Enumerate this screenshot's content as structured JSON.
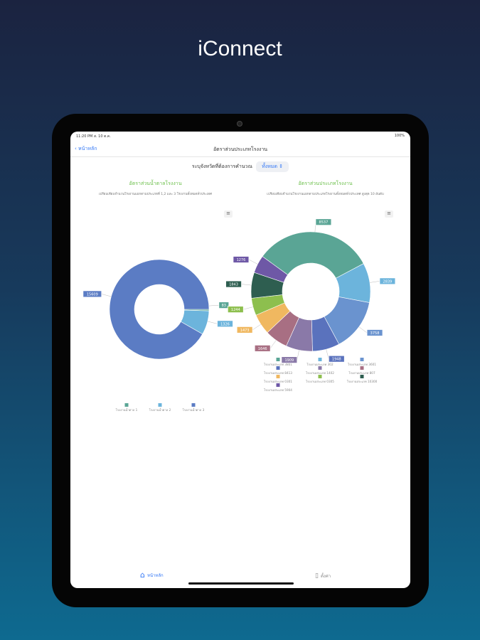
{
  "brand": "iConnect",
  "status": {
    "time": "11:20 PM  ส. 10 ต.ค.",
    "battery": "100%"
  },
  "nav": {
    "back": "หน้าหลัก",
    "title": "อัตราส่วนประเภทโรงงาน"
  },
  "picker": {
    "label": "ระบุจังหวัดที่ต้องการคำนวณ",
    "value": "ทั้งหมด"
  },
  "tabs": {
    "home": "หน้าหลัก",
    "settings": "ตั้งค่า"
  },
  "chart_data": [
    {
      "type": "pie",
      "title": "อัตราส่วนน้ำตาลโรงงาน",
      "subtitle": "เปรียบเทียบจำนวนโรงงานแยกตามประเภทที่ 1,2 และ 3 โรงงานทั้งหมดทั่วประเทศ",
      "categories": [
        "โรงงานน้ำตาล 1",
        "โรงงานน้ำตาล 2",
        "โรงงานน้ำตาล 3"
      ],
      "values": [
        83,
        1326,
        15609
      ],
      "colors": [
        "#5aa595",
        "#6cb4dc",
        "#5b7cc4"
      ],
      "start": 90
    },
    {
      "type": "pie",
      "title": "อัตราส่วนประเภทโรงงาน",
      "subtitle": "เปรียบเทียบจำนวนโรงงานแยกตามประเภทโรงงานทั้งหมดทั่วประเทศ สูงสุด 10 อันดับ",
      "categories": [
        "โรงงานประเภท 3801",
        "โรงงานประเภท 302",
        "โรงงานประเภท 3601",
        "โรงงานประเภท 8413",
        "โรงงานประเภท 1402",
        "โรงงานประเภท 807",
        "โรงงานประเภท 0301",
        "โรงงานประเภท 0305",
        "โรงงานประเภท 10300",
        "โรงงานประเภท 5904"
      ],
      "values": [
        8537,
        2839,
        3758,
        1948,
        1909,
        1646,
        1473,
        1244,
        1843,
        1276
      ],
      "colors": [
        "#5aa595",
        "#6cb4dc",
        "#6a93cf",
        "#5a72bd",
        "#8a79a8",
        "#a86f83",
        "#f0b860",
        "#8dbf4e",
        "#2e5e50",
        "#6e58a6"
      ],
      "start": -54
    }
  ]
}
